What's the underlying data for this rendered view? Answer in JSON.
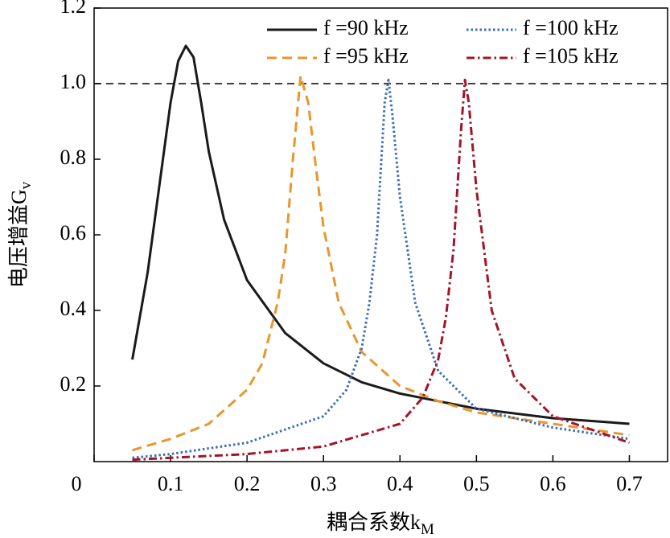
{
  "chart_data": {
    "type": "line",
    "xlabel": "耦合系数k",
    "xlabel_sub": "M",
    "ylabel": "电压增益G",
    "ylabel_sub": "v",
    "xlim": [
      0,
      0.75
    ],
    "ylim": [
      0,
      1.2
    ],
    "xticks": [
      0,
      0.1,
      0.2,
      0.3,
      0.4,
      0.5,
      0.6,
      0.7
    ],
    "yticks": [
      0.2,
      0.4,
      0.6,
      0.8,
      {
        "value": 1,
        "label": "1.0"
      },
      1.2
    ],
    "hline": 1,
    "legend": "upper right",
    "series": [
      {
        "name": "f =90 kHz",
        "color": "#1a1a1a",
        "dash": "solid",
        "x": [
          0.05,
          0.07,
          0.09,
          0.1,
          0.11,
          0.12,
          0.13,
          0.14,
          0.15,
          0.17,
          0.2,
          0.25,
          0.3,
          0.35,
          0.4,
          0.45,
          0.5,
          0.6,
          0.7
        ],
        "values": [
          0.27,
          0.5,
          0.8,
          0.95,
          1.06,
          1.1,
          1.07,
          0.95,
          0.82,
          0.64,
          0.48,
          0.34,
          0.26,
          0.21,
          0.18,
          0.16,
          0.14,
          0.115,
          0.1
        ]
      },
      {
        "name": "f =95 kHz",
        "color": "#e8962e",
        "dash": "dashed",
        "x": [
          0.05,
          0.1,
          0.15,
          0.2,
          0.22,
          0.24,
          0.25,
          0.26,
          0.27,
          0.28,
          0.29,
          0.3,
          0.32,
          0.35,
          0.4,
          0.45,
          0.5,
          0.6,
          0.7
        ],
        "values": [
          0.03,
          0.06,
          0.1,
          0.19,
          0.26,
          0.42,
          0.55,
          0.8,
          1.02,
          0.95,
          0.78,
          0.62,
          0.42,
          0.29,
          0.2,
          0.16,
          0.13,
          0.1,
          0.07
        ]
      },
      {
        "name": "f =100 kHz",
        "color": "#3a6fb0",
        "dash": "dotted",
        "x": [
          0.05,
          0.1,
          0.2,
          0.3,
          0.33,
          0.35,
          0.36,
          0.37,
          0.38,
          0.385,
          0.39,
          0.4,
          0.42,
          0.45,
          0.5,
          0.6,
          0.7
        ],
        "values": [
          0.01,
          0.02,
          0.05,
          0.12,
          0.19,
          0.3,
          0.42,
          0.6,
          0.95,
          1.01,
          0.92,
          0.7,
          0.42,
          0.24,
          0.14,
          0.09,
          0.06
        ]
      },
      {
        "name": "f =105 kHz",
        "color": "#a3142b",
        "dash": "dashdot",
        "x": [
          0.05,
          0.1,
          0.2,
          0.3,
          0.4,
          0.43,
          0.45,
          0.46,
          0.47,
          0.48,
          0.485,
          0.49,
          0.5,
          0.52,
          0.55,
          0.6,
          0.7
        ],
        "values": [
          0.005,
          0.01,
          0.02,
          0.04,
          0.1,
          0.17,
          0.27,
          0.38,
          0.56,
          0.88,
          1.01,
          0.95,
          0.72,
          0.4,
          0.22,
          0.12,
          0.05
        ]
      }
    ]
  }
}
